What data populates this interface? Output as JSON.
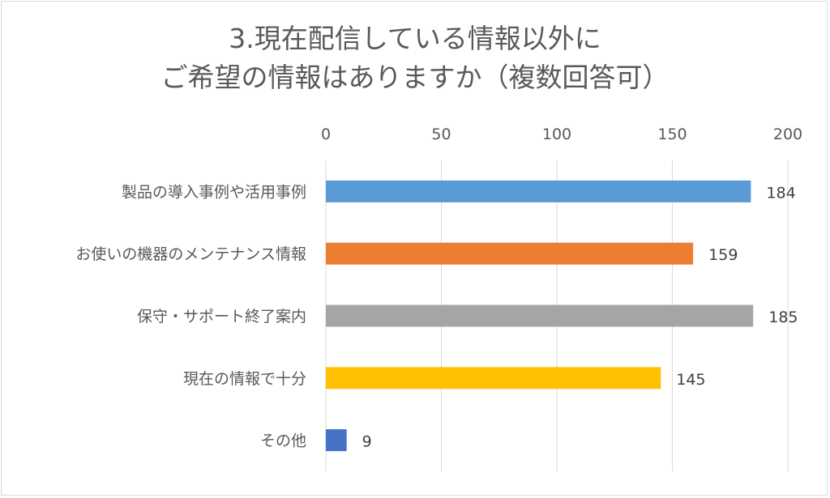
{
  "chart_data": {
    "type": "bar",
    "orientation": "horizontal",
    "title_lines": [
      "3.現在配信している情報以外に",
      "ご希望の情報はありますか（複数回答可）"
    ],
    "categories": [
      "製品の導入事例や活用事例",
      "お使いの機器のメンテナンス情報",
      "保守・サポート終了案内",
      "現在の情報で十分",
      "その他"
    ],
    "values": [
      184,
      159,
      185,
      145,
      9
    ],
    "value_labels": [
      "184",
      "159",
      "185",
      "145",
      "9"
    ],
    "bar_colors": [
      "#5b9bd5",
      "#ed7d31",
      "#a5a5a5",
      "#ffc000",
      "#4472c4"
    ],
    "xlim": [
      0,
      200
    ],
    "xticks": [
      0,
      50,
      100,
      150,
      200
    ],
    "xtick_labels": [
      "0",
      "50",
      "100",
      "150",
      "200"
    ],
    "x_axis_position": "top",
    "grid": true,
    "legend": "none"
  }
}
